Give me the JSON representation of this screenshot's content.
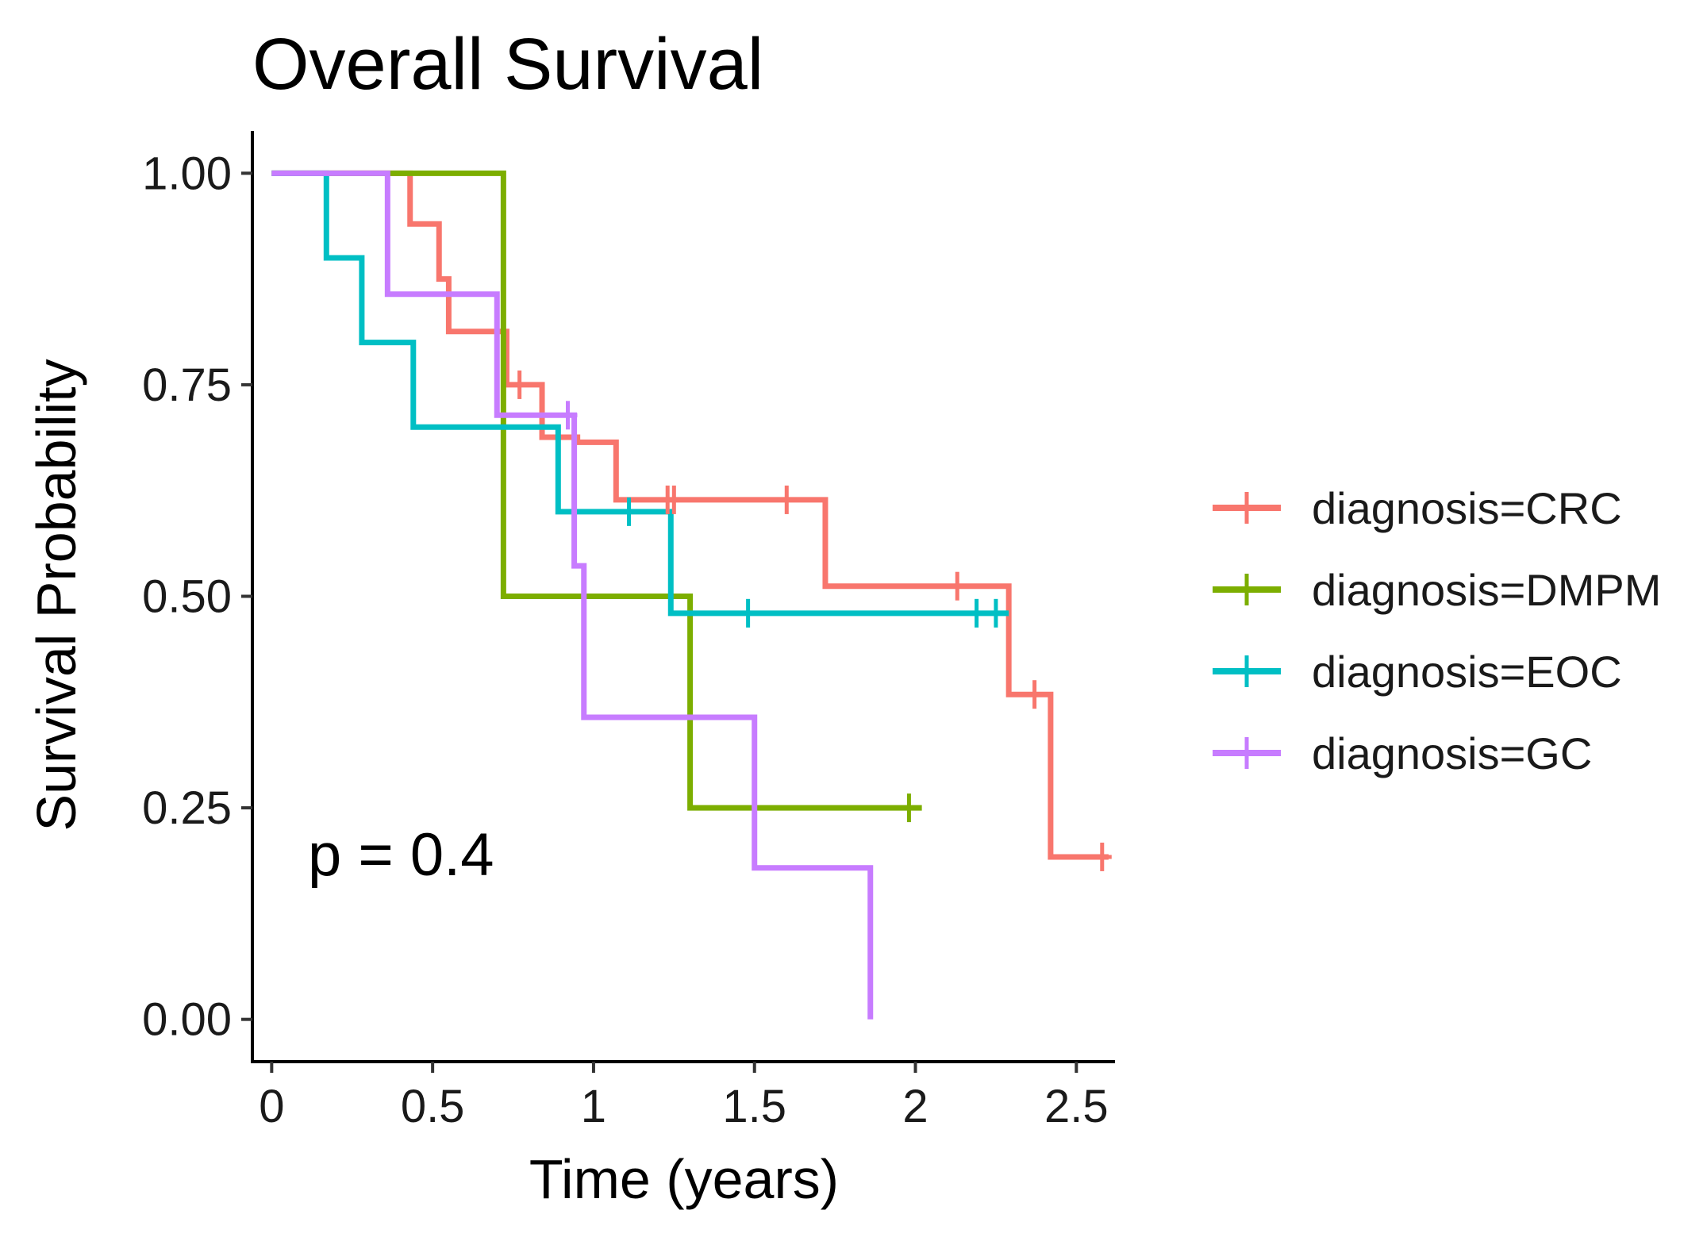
{
  "chart_data": {
    "type": "line",
    "subtype": "kaplan-meier step",
    "title": "Overall Survival",
    "xlabel": "Time (years)",
    "ylabel": "Survival Probability",
    "xlim": [
      -0.06,
      2.62
    ],
    "ylim": [
      -0.05,
      1.05
    ],
    "x_ticks": [
      0,
      0.5,
      1,
      1.5,
      2,
      2.5
    ],
    "x_tick_labels": [
      "0",
      "0.5",
      "1",
      "1.5",
      "2",
      "2.5"
    ],
    "y_ticks": [
      0,
      0.25,
      0.5,
      0.75,
      1.0
    ],
    "y_tick_labels": [
      "0.00",
      "0.25",
      "0.50",
      "0.75",
      "1.00"
    ],
    "grid": false,
    "legend_position": "right",
    "annotation": "p = 0.4",
    "series": [
      {
        "name": "diagnosis=CRC",
        "color": "#F8766D",
        "steps": [
          [
            0,
            1.0
          ],
          [
            0.43,
            0.94
          ],
          [
            0.52,
            0.875
          ],
          [
            0.55,
            0.813
          ],
          [
            0.73,
            0.75
          ],
          [
            0.84,
            0.688
          ],
          [
            0.95,
            0.682
          ],
          [
            1.07,
            0.614
          ],
          [
            1.72,
            0.512
          ],
          [
            2.29,
            0.384
          ],
          [
            2.42,
            0.192
          ]
        ],
        "end": 2.6,
        "censored": [
          [
            0.77,
            0.75
          ],
          [
            1.23,
            0.614
          ],
          [
            1.25,
            0.614
          ],
          [
            1.6,
            0.614
          ],
          [
            2.13,
            0.512
          ],
          [
            2.37,
            0.384
          ],
          [
            2.58,
            0.192
          ]
        ]
      },
      {
        "name": "diagnosis=DMPM",
        "color": "#7CAE00",
        "steps": [
          [
            0,
            1.0
          ],
          [
            0.72,
            0.5
          ],
          [
            1.3,
            0.25
          ]
        ],
        "end": 2.02,
        "censored": [
          [
            1.98,
            0.25
          ]
        ]
      },
      {
        "name": "diagnosis=EOC",
        "color": "#00BFC4",
        "steps": [
          [
            0,
            1.0
          ],
          [
            0.17,
            0.9
          ],
          [
            0.28,
            0.8
          ],
          [
            0.44,
            0.7
          ],
          [
            0.89,
            0.6
          ],
          [
            1.24,
            0.48
          ]
        ],
        "end": 2.29,
        "censored": [
          [
            1.11,
            0.6
          ],
          [
            1.48,
            0.48
          ],
          [
            2.19,
            0.48
          ],
          [
            2.25,
            0.48
          ]
        ]
      },
      {
        "name": "diagnosis=GC",
        "color": "#C77CFF",
        "steps": [
          [
            0,
            1.0
          ],
          [
            0.36,
            0.857
          ],
          [
            0.7,
            0.714
          ],
          [
            0.94,
            0.536
          ],
          [
            0.97,
            0.357
          ],
          [
            1.5,
            0.179
          ],
          [
            1.86,
            0.0
          ]
        ],
        "end": 1.86,
        "censored": [
          [
            0.92,
            0.714
          ]
        ]
      }
    ]
  }
}
